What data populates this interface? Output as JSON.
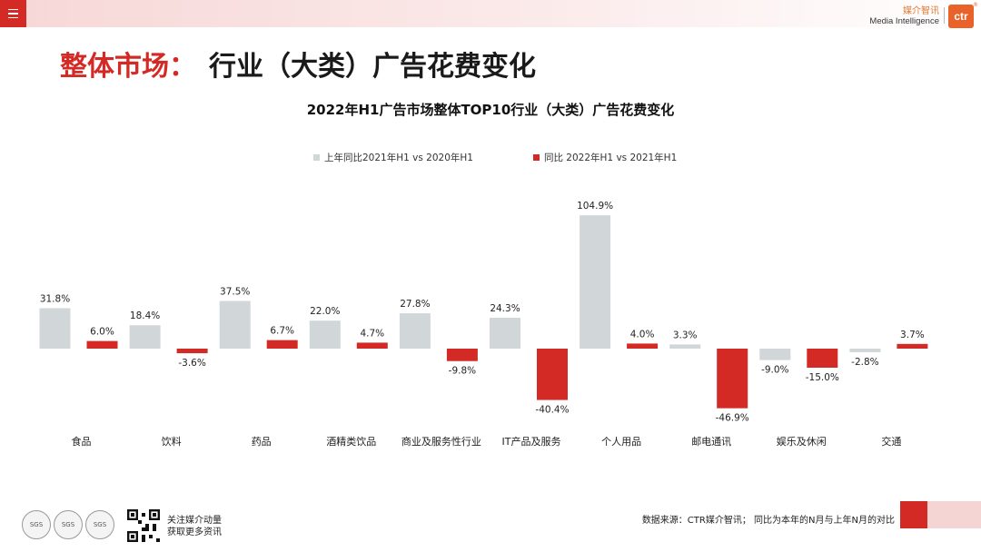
{
  "header": {
    "brand_cn": "媒介智讯",
    "brand_en": "Media Intelligence",
    "logo_text": "ctr",
    "logo_mark": "®"
  },
  "title": {
    "accent": "整体市场：",
    "main": "行业（大类）广告花费变化"
  },
  "colors": {
    "accent_red": "#d42a26",
    "bar_gray": "#d1d6d9",
    "bar_red": "#d42a26"
  },
  "chart_data": {
    "type": "bar",
    "title": "2022年H1广告市场整体TOP10行业（大类）广告花费变化",
    "categories": [
      "食品",
      "饮料",
      "药品",
      "酒精类饮品",
      "商业及服务性行业",
      "IT产品及服务",
      "个人用品",
      "邮电通讯",
      "娱乐及休闲",
      "交通"
    ],
    "series": [
      {
        "name": "上年同比2021年H1  vs  2020年H1",
        "color": "#d1d6d9",
        "values": [
          31.8,
          18.4,
          37.5,
          22.0,
          27.8,
          24.3,
          104.9,
          3.3,
          -9.0,
          -2.8
        ],
        "labels": [
          "31.8%",
          "18.4%",
          "37.5%",
          "22.0%",
          "27.8%",
          "24.3%",
          "104.9%",
          "3.3%",
          "-9.0%",
          "-2.8%"
        ]
      },
      {
        "name": "同比 2022年H1  vs  2021年H1",
        "color": "#d42a26",
        "values": [
          6.0,
          -3.6,
          6.7,
          4.7,
          -9.8,
          -40.4,
          4.0,
          -46.9,
          -15.0,
          3.7
        ],
        "labels": [
          "6.0%",
          "-3.6%",
          "6.7%",
          "4.7%",
          "-9.8%",
          "-40.4%",
          "4.0%",
          "-46.9%",
          "-15.0%",
          "3.7%"
        ]
      }
    ],
    "xlabel": "",
    "ylabel": "",
    "ylim": [
      -50,
      110
    ],
    "grid": false,
    "legend": "top-center"
  },
  "footer": {
    "cert_label": "SGS",
    "follow_line1": "关注媒介动量",
    "follow_line2": "获取更多资讯",
    "source": "数据来源：CTR媒介智讯；  同比为本年的N月与上年N月的对比"
  }
}
